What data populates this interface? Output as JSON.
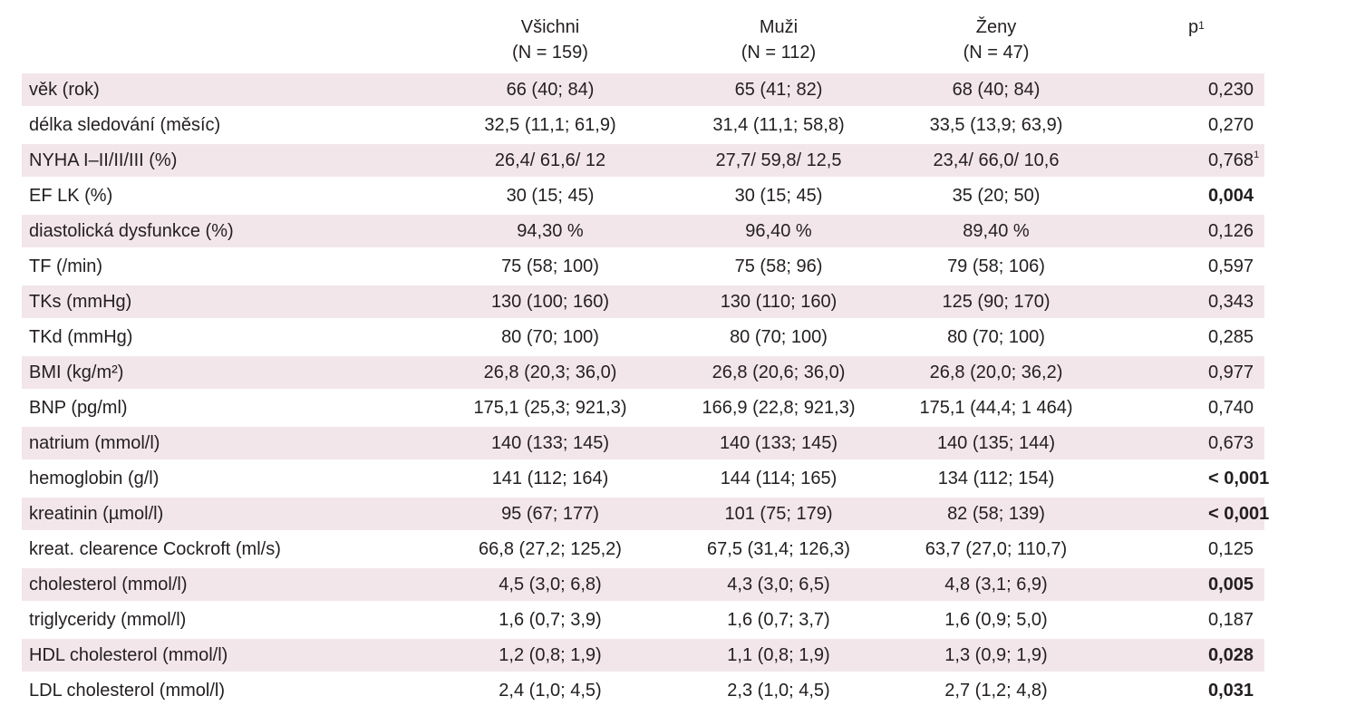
{
  "table": {
    "headers": {
      "all_name": "Všichni",
      "all_n": "(N = 159)",
      "men_name": "Muži",
      "men_n": "(N = 112)",
      "women_name": "Ženy",
      "women_n": "(N = 47)",
      "p_label": "p",
      "p_sup": "1"
    },
    "rows": [
      {
        "label": "věk (rok)",
        "all": "66 (40; 84)",
        "men": "65 (41; 82)",
        "women": "68 (40; 84)",
        "p": "0,230",
        "p_sup": "",
        "bold": false,
        "shade": true
      },
      {
        "label": "délka sledování (měsíc)",
        "all": "32,5 (11,1; 61,9)",
        "men": "31,4 (11,1; 58,8)",
        "women": "33,5 (13,9; 63,9)",
        "p": "0,270",
        "p_sup": "",
        "bold": false,
        "shade": false
      },
      {
        "label": "NYHA I–II/II/III (%)",
        "all": "26,4/ 61,6/ 12",
        "men": "27,7/ 59,8/ 12,5",
        "women": "23,4/ 66,0/ 10,6",
        "p": "0,768",
        "p_sup": "1",
        "bold": false,
        "shade": true
      },
      {
        "label": "EF LK (%)",
        "all": "30 (15; 45)",
        "men": "30 (15; 45)",
        "women": "35 (20; 50)",
        "p": "0,004",
        "p_sup": "",
        "bold": true,
        "shade": false
      },
      {
        "label": "diastolická dysfunkce (%)",
        "all": "94,30 %",
        "men": "96,40 %",
        "women": "89,40 %",
        "p": "0,126",
        "p_sup": "",
        "bold": false,
        "shade": true
      },
      {
        "label": "TF (/min)",
        "all": "75 (58; 100)",
        "men": "75 (58; 96)",
        "women": "79 (58; 106)",
        "p": "0,597",
        "p_sup": "",
        "bold": false,
        "shade": false
      },
      {
        "label": "TKs (mmHg)",
        "all": "130 (100; 160)",
        "men": "130 (110; 160)",
        "women": "125 (90; 170)",
        "p": "0,343",
        "p_sup": "",
        "bold": false,
        "shade": true
      },
      {
        "label": "TKd (mmHg)",
        "all": "80 (70; 100)",
        "men": "80 (70; 100)",
        "women": "80 (70; 100)",
        "p": "0,285",
        "p_sup": "",
        "bold": false,
        "shade": false
      },
      {
        "label": "BMI (kg/m²)",
        "all": "26,8 (20,3; 36,0)",
        "men": "26,8 (20,6; 36,0)",
        "women": "26,8 (20,0; 36,2)",
        "p": "0,977",
        "p_sup": "",
        "bold": false,
        "shade": true
      },
      {
        "label": "BNP (pg/ml)",
        "all": "175,1 (25,3; 921,3)",
        "men": "166,9 (22,8; 921,3)",
        "women": "175,1 (44,4; 1 464)",
        "p": "0,740",
        "p_sup": "",
        "bold": false,
        "shade": false
      },
      {
        "label": "natrium (mmol/l)",
        "all": "140 (133; 145)",
        "men": "140 (133; 145)",
        "women": "140 (135; 144)",
        "p": "0,673",
        "p_sup": "",
        "bold": false,
        "shade": true
      },
      {
        "label": "hemoglobin (g/l)",
        "all": "141 (112; 164)",
        "men": "144 (114; 165)",
        "women": "134 (112; 154)",
        "p": "< 0,001",
        "p_sup": "",
        "bold": true,
        "shade": false
      },
      {
        "label": "kreatinin (µmol/l)",
        "all": "95 (67; 177)",
        "men": "101 (75; 179)",
        "women": "82 (58; 139)",
        "p": "< 0,001",
        "p_sup": "",
        "bold": true,
        "shade": true
      },
      {
        "label": "kreat. clearence Cockroft (ml/s)",
        "all": "66,8 (27,2; 125,2)",
        "men": "67,5 (31,4; 126,3)",
        "women": "63,7 (27,0; 110,7)",
        "p": "0,125",
        "p_sup": "",
        "bold": false,
        "shade": false
      },
      {
        "label": "cholesterol (mmol/l)",
        "all": "4,5 (3,0; 6,8)",
        "men": "4,3 (3,0; 6,5)",
        "women": "4,8 (3,1; 6,9)",
        "p": "0,005",
        "p_sup": "",
        "bold": true,
        "shade": true
      },
      {
        "label": "triglyceridy (mmol/l)",
        "all": "1,6 (0,7; 3,9)",
        "men": "1,6 (0,7; 3,7)",
        "women": "1,6 (0,9; 5,0)",
        "p": "0,187",
        "p_sup": "",
        "bold": false,
        "shade": false
      },
      {
        "label": "HDL cholesterol (mmol/l)",
        "all": "1,2 (0,8; 1,9)",
        "men": "1,1 (0,8; 1,9)",
        "women": "1,3 (0,9; 1,9)",
        "p": "0,028",
        "p_sup": "",
        "bold": true,
        "shade": true
      },
      {
        "label": "LDL cholesterol (mmol/l)",
        "all": "2,4 (1,0; 4,5)",
        "men": "2,3 (1,0; 4,5)",
        "women": "2,7 (1,2; 4,8)",
        "p": "0,031",
        "p_sup": "",
        "bold": true,
        "shade": false
      }
    ]
  }
}
